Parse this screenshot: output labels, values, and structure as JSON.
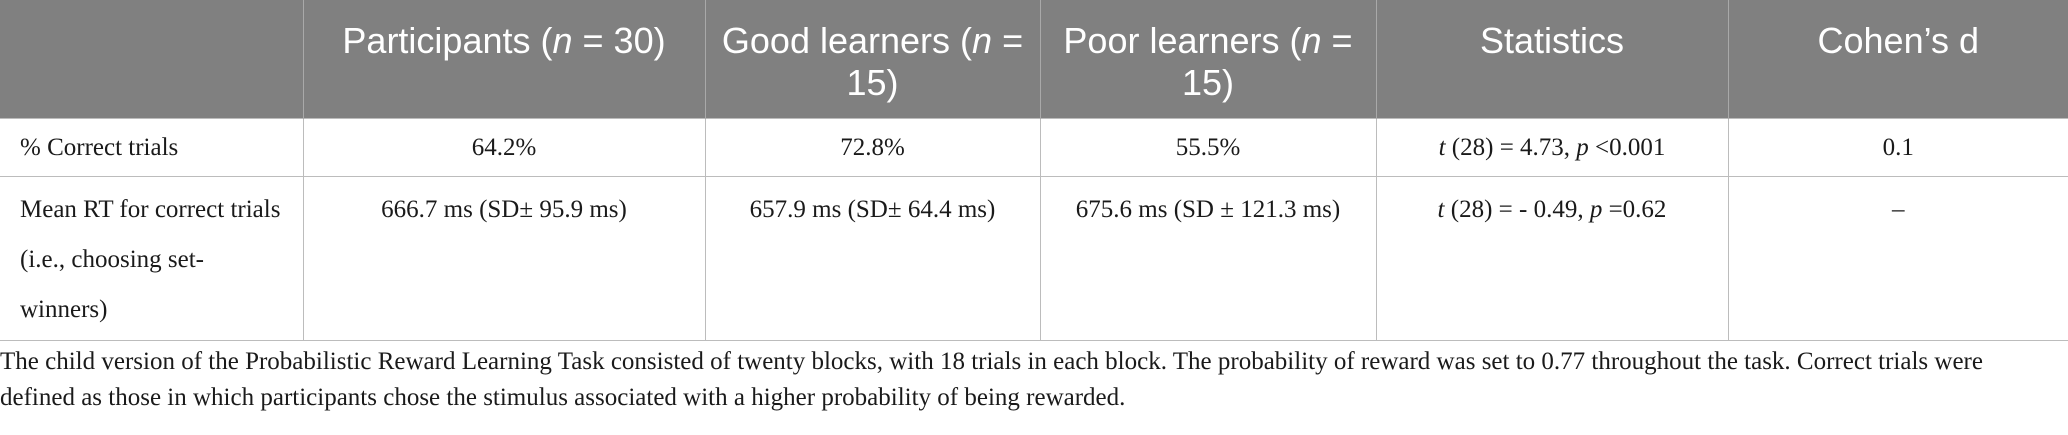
{
  "table": {
    "headers": {
      "col0": "",
      "col1_pre": "Participants (",
      "col1_n": "n",
      "col1_post": " = 30)",
      "col2_pre": "Good learners (",
      "col2_n": "n",
      "col2_post": " = 15)",
      "col3_pre": "Poor learners (",
      "col3_n": "n",
      "col3_post": " = 15)",
      "col4": "Statistics",
      "col5": "Cohen’s d"
    },
    "rows": [
      {
        "label": "% Correct trials",
        "participants": "64.2%",
        "good": "72.8%",
        "poor": "55.5%",
        "stat_t": "t",
        "stat_mid": " (28) = 4.73, ",
        "stat_p": "p",
        "stat_end": " <0.001",
        "cohens_d": "0.1"
      },
      {
        "label": "Mean RT for correct trials (i.e., choosing set-winners)",
        "participants": "666.7 ms (SD± 95.9 ms)",
        "good": "657.9 ms (SD± 64.4 ms)",
        "poor": "675.6 ms (SD ± 121.3 ms)",
        "stat_t": "t",
        "stat_mid": " (28) = - 0.49, ",
        "stat_p": "p",
        "stat_end": " =0.62",
        "cohens_d": "–"
      }
    ]
  },
  "footnote": "The child version of the Probabilistic Reward Learning Task consisted of twenty blocks, with 18 trials in each block. The probability of reward was set to 0.77 throughout the task. Correct trials were defined as those in which participants chose the stimulus associated with a higher probability of being rewarded."
}
